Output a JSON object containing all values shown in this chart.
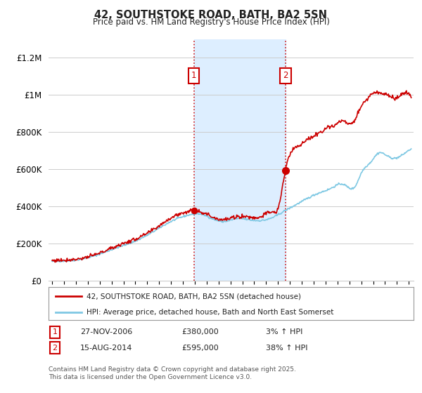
{
  "title": "42, SOUTHSTOKE ROAD, BATH, BA2 5SN",
  "subtitle": "Price paid vs. HM Land Registry's House Price Index (HPI)",
  "xlim_start": 1994.7,
  "xlim_end": 2025.4,
  "ylim": [
    0,
    1300000
  ],
  "yticks": [
    0,
    200000,
    400000,
    600000,
    800000,
    1000000,
    1200000
  ],
  "ytick_labels": [
    "£0",
    "£200K",
    "£400K",
    "£600K",
    "£800K",
    "£1M",
    "£1.2M"
  ],
  "sale1_date": 2006.92,
  "sale1_price": 380000,
  "sale2_date": 2014.62,
  "sale2_price": 595000,
  "hpi_color": "#7ec8e3",
  "price_color": "#cc0000",
  "shade_color": "#ddeeff",
  "legend_label1": "42, SOUTHSTOKE ROAD, BATH, BA2 5SN (detached house)",
  "legend_label2": "HPI: Average price, detached house, Bath and North East Somerset",
  "footnote1": "Contains HM Land Registry data © Crown copyright and database right 2025.",
  "footnote2": "This data is licensed under the Open Government Licence v3.0.",
  "background_color": "#ffffff",
  "grid_color": "#cccccc",
  "xticks": [
    1995,
    1996,
    1997,
    1998,
    1999,
    2000,
    2001,
    2002,
    2003,
    2004,
    2005,
    2006,
    2007,
    2008,
    2009,
    2010,
    2011,
    2012,
    2013,
    2014,
    2015,
    2016,
    2017,
    2018,
    2019,
    2020,
    2021,
    2022,
    2023,
    2024,
    2025
  ],
  "hpi_anchors_t": [
    1995.0,
    1996.0,
    1997.5,
    1999.0,
    2000.5,
    2002.0,
    2003.5,
    2005.0,
    2006.5,
    2007.5,
    2008.5,
    2009.5,
    2010.5,
    2011.5,
    2012.5,
    2013.5,
    2014.5,
    2015.5,
    2016.5,
    2017.5,
    2018.5,
    2019.5,
    2020.5,
    2021.0,
    2021.8,
    2022.5,
    2023.0,
    2023.8,
    2024.5,
    2025.2
  ],
  "hpi_anchors_v": [
    105000,
    108000,
    118000,
    145000,
    180000,
    215000,
    265000,
    320000,
    355000,
    360000,
    335000,
    320000,
    335000,
    330000,
    325000,
    340000,
    375000,
    410000,
    445000,
    475000,
    500000,
    520000,
    510000,
    580000,
    640000,
    690000,
    680000,
    660000,
    680000,
    710000
  ],
  "price_anchors_t": [
    1995.0,
    1996.0,
    1997.5,
    1999.0,
    2000.5,
    2002.0,
    2003.5,
    2005.0,
    2006.5,
    2006.92,
    2007.8,
    2008.5,
    2009.5,
    2010.5,
    2011.5,
    2012.5,
    2013.5,
    2014.0,
    2014.62,
    2015.0,
    2015.8,
    2016.5,
    2017.3,
    2018.0,
    2018.8,
    2019.5,
    2020.2,
    2021.0,
    2021.5,
    2022.0,
    2022.7,
    2023.3,
    2023.8,
    2024.3,
    2024.8,
    2025.2
  ],
  "price_anchors_v": [
    110000,
    113000,
    122000,
    150000,
    190000,
    225000,
    275000,
    340000,
    375000,
    380000,
    365000,
    345000,
    330000,
    345000,
    345000,
    345000,
    370000,
    390000,
    595000,
    680000,
    730000,
    760000,
    790000,
    820000,
    840000,
    860000,
    845000,
    940000,
    980000,
    1010000,
    1010000,
    1000000,
    980000,
    1000000,
    1010000,
    990000
  ]
}
